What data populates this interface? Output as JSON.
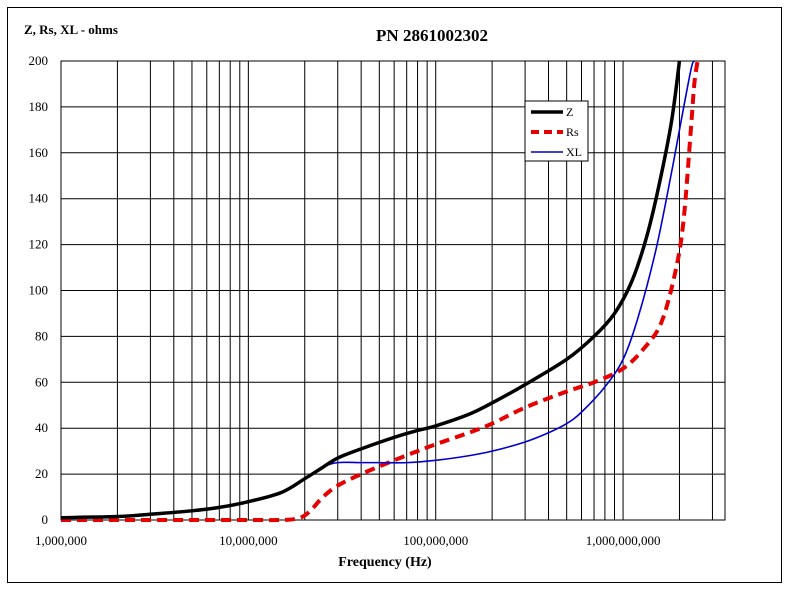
{
  "chart_data": {
    "type": "line",
    "title": "PN 2861002302",
    "ylabel": "Z, Rs, XL - ohms",
    "xlabel": "Frequency (Hz)",
    "xscale": "log",
    "xlim": [
      1000000,
      3500000000
    ],
    "ylim": [
      0,
      200
    ],
    "yticks": [
      0,
      20,
      40,
      60,
      80,
      100,
      120,
      140,
      160,
      180,
      200
    ],
    "xtick_labels": [
      {
        "value": 1000000,
        "label": "1,000,000"
      },
      {
        "value": 10000000,
        "label": "10,000,000"
      },
      {
        "value": 100000000,
        "label": "100,000,000"
      },
      {
        "value": 1000000000,
        "label": "1,000,000,000"
      }
    ],
    "grid": true,
    "legend_position": "top-right",
    "series": [
      {
        "name": "Z",
        "color": "#000000",
        "style": "solid-thick",
        "x": [
          1000000,
          2000000,
          3000000,
          5000000,
          7000000,
          10000000,
          15000000,
          20000000,
          25000000,
          30000000,
          40000000,
          60000000,
          80000000,
          100000000,
          150000000,
          200000000,
          300000000,
          500000000,
          700000000,
          900000000,
          1100000000,
          1300000000,
          1500000000,
          1800000000,
          2000000000
        ],
        "y": [
          1,
          1.5,
          2.5,
          4,
          5.5,
          8,
          12,
          18,
          23,
          27,
          31,
          36,
          39,
          41,
          46,
          51,
          59,
          70,
          80,
          90,
          103,
          120,
          140,
          172,
          200
        ]
      },
      {
        "name": "Rs",
        "color": "#e60000",
        "style": "dashed-thick",
        "x": [
          1000000,
          5000000,
          10000000,
          15000000,
          18000000,
          20000000,
          22000000,
          25000000,
          30000000,
          40000000,
          60000000,
          80000000,
          100000000,
          150000000,
          200000000,
          300000000,
          500000000,
          700000000,
          1000000000,
          1300000000,
          1600000000,
          1900000000,
          2100000000,
          2300000000,
          2400000000,
          2500000000
        ],
        "y": [
          0,
          0,
          0,
          0,
          0.5,
          2,
          5,
          10,
          15,
          20,
          26,
          30,
          33,
          38,
          42,
          49,
          56,
          60,
          66,
          75,
          86,
          108,
          130,
          170,
          190,
          200
        ]
      },
      {
        "name": "XL",
        "color": "#0000cc",
        "style": "solid-thin",
        "x": [
          1000000,
          2000000,
          3000000,
          5000000,
          7000000,
          10000000,
          15000000,
          20000000,
          25000000,
          30000000,
          40000000,
          50000000,
          70000000,
          100000000,
          150000000,
          200000000,
          300000000,
          400000000,
          500000000,
          600000000,
          800000000,
          1000000000,
          1200000000,
          1500000000,
          1800000000,
          2000000000,
          2300000000,
          2400000000
        ],
        "y": [
          1,
          1.5,
          2.5,
          4,
          5.5,
          8,
          12,
          18,
          23,
          25,
          25,
          25,
          25,
          26,
          28,
          30,
          34,
          38,
          42,
          47,
          58,
          70,
          88,
          118,
          150,
          170,
          196,
          200
        ]
      }
    ]
  }
}
